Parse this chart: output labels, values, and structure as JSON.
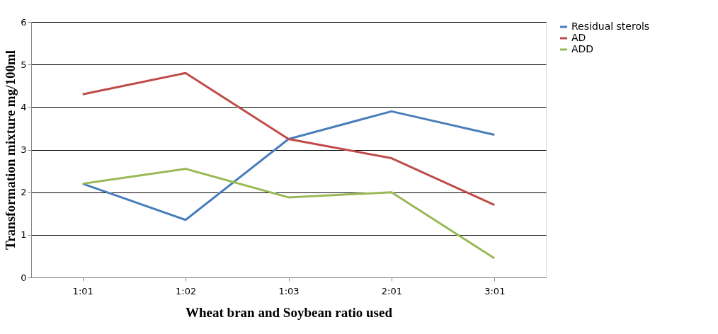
{
  "chart_data": {
    "type": "line",
    "xlabel": "Wheat bran and Soybean ratio used",
    "ylabel": "Transformation mixture mg/100ml",
    "categories": [
      "1:01",
      "1:02",
      "1:03",
      "2:01",
      "3:01"
    ],
    "series": [
      {
        "name": "Residual sterols",
        "color": "#4a7ebb",
        "values": [
          2.2,
          1.35,
          3.25,
          3.9,
          3.35
        ]
      },
      {
        "name": "AD",
        "color": "#be4b48",
        "values": [
          4.3,
          4.8,
          3.25,
          2.8,
          1.7
        ]
      },
      {
        "name": "ADD",
        "color": "#98b954",
        "values": [
          2.2,
          2.55,
          1.88,
          2.0,
          0.45
        ]
      }
    ],
    "ylim": [
      0,
      6
    ],
    "yticks": [
      0,
      1,
      2,
      3,
      4,
      5,
      6
    ],
    "grid": "y",
    "legend": "right",
    "marker": "none",
    "line_style": "solid"
  }
}
